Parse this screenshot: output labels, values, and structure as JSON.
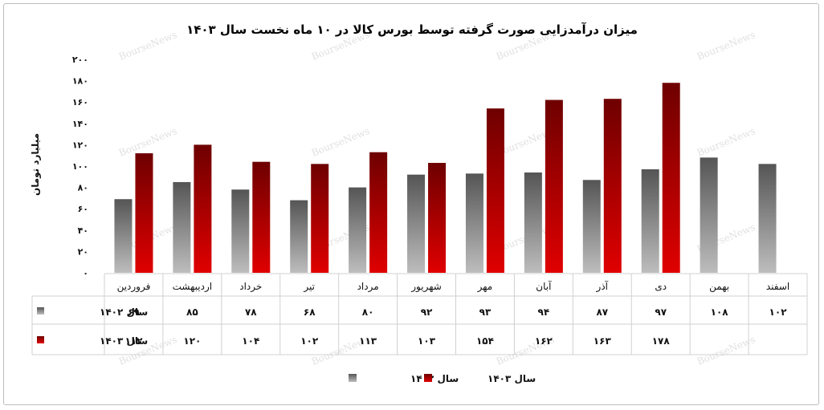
{
  "chart_data": {
    "type": "bar",
    "title": "میزان درآمدزایی صورت گرفته توسط بورس کالا در ۱۰ ماه نخست سال ۱۴۰۳",
    "ylabel": "میلیارد تومان",
    "xlabel": "",
    "ylim": [
      0,
      200
    ],
    "yticks": [
      0,
      20,
      40,
      60,
      80,
      100,
      120,
      140,
      160,
      180,
      200
    ],
    "ytick_labels": [
      "۰",
      "۲۰",
      "۴۰",
      "۶۰",
      "۸۰",
      "۱۰۰",
      "۱۲۰",
      "۱۴۰",
      "۱۶۰",
      "۱۸۰",
      "۲۰۰"
    ],
    "categories": [
      "فروردین",
      "اردیبهشت",
      "خرداد",
      "تیر",
      "مرداد",
      "شهریور",
      "مهر",
      "آبان",
      "آذر",
      "دی",
      "بهمن",
      "اسفند"
    ],
    "series": [
      {
        "name": "سال ۱۴۰۲",
        "color": "#7a7a7a",
        "values": [
          69,
          85,
          78,
          68,
          80,
          92,
          93,
          94,
          87,
          97,
          108,
          102
        ],
        "value_labels": [
          "۶۹",
          "۸۵",
          "۷۸",
          "۶۸",
          "۸۰",
          "۹۲",
          "۹۳",
          "۹۴",
          "۸۷",
          "۹۷",
          "۱۰۸",
          "۱۰۲"
        ]
      },
      {
        "name": "سال ۱۴۰۳",
        "color": "#b40000",
        "values": [
          112,
          120,
          104,
          102,
          113,
          103,
          154,
          162,
          163,
          178,
          null,
          null
        ],
        "value_labels": [
          "۱۱۲",
          "۱۲۰",
          "۱۰۴",
          "۱۰۲",
          "۱۱۳",
          "۱۰۳",
          "۱۵۴",
          "۱۶۲",
          "۱۶۳",
          "۱۷۸",
          "",
          ""
        ]
      }
    ],
    "grid": false,
    "legend": "bottom",
    "data_table": true,
    "watermark": "BourseNews"
  }
}
